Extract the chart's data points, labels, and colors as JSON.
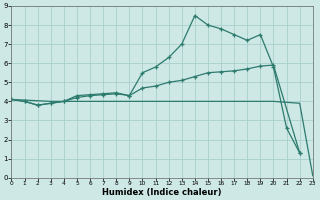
{
  "xlabel": "Humidex (Indice chaleur)",
  "background_color": "#cde8e5",
  "grid_color": "#aacfcc",
  "line_color": "#2d7a6e",
  "xlim": [
    0,
    23
  ],
  "ylim": [
    0,
    9
  ],
  "xticks": [
    0,
    1,
    2,
    3,
    4,
    5,
    6,
    7,
    8,
    9,
    10,
    11,
    12,
    13,
    14,
    15,
    16,
    17,
    18,
    19,
    20,
    21,
    22,
    23
  ],
  "yticks": [
    0,
    1,
    2,
    3,
    4,
    5,
    6,
    7,
    8,
    9
  ],
  "line1_x": [
    0,
    1,
    2,
    3,
    4,
    5,
    6,
    7,
    8,
    9,
    10,
    11,
    12,
    13,
    14,
    15,
    16,
    17,
    18,
    19,
    20,
    21,
    22
  ],
  "line1_y": [
    4.1,
    4.0,
    3.8,
    3.9,
    4.0,
    4.3,
    4.35,
    4.4,
    4.45,
    4.3,
    5.5,
    5.8,
    6.3,
    7.0,
    8.5,
    8.0,
    7.8,
    7.5,
    7.2,
    7.5,
    5.8,
    2.6,
    1.3
  ],
  "line2_x": [
    0,
    1,
    2,
    3,
    4,
    5,
    6,
    7,
    8,
    9,
    10,
    11,
    12,
    13,
    14,
    15,
    16,
    17,
    18,
    19,
    20,
    22
  ],
  "line2_y": [
    4.1,
    4.0,
    3.8,
    3.9,
    4.0,
    4.2,
    4.3,
    4.35,
    4.4,
    4.3,
    4.7,
    4.8,
    5.0,
    5.1,
    5.3,
    5.5,
    5.55,
    5.6,
    5.7,
    5.85,
    5.9,
    1.3
  ],
  "line3_x": [
    0,
    3,
    20,
    22,
    23
  ],
  "line3_y": [
    4.1,
    4.0,
    4.0,
    3.9,
    0.1
  ],
  "marker": "+"
}
